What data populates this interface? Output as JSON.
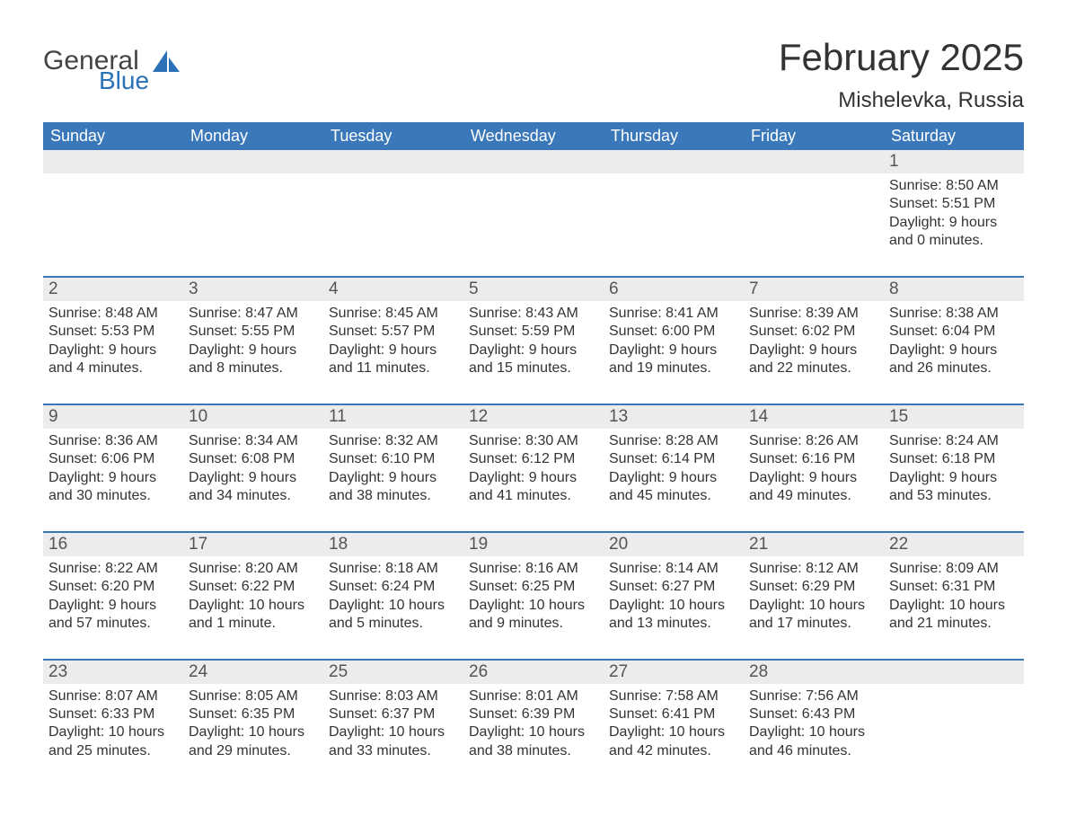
{
  "brand": {
    "general": "General",
    "blue": "Blue",
    "brand_color": "#2a71b8"
  },
  "title": "February 2025",
  "location": "Mishelevka, Russia",
  "colors": {
    "header_bg": "#3a78b9",
    "header_text": "#ffffff",
    "daynum_bg": "#ececec",
    "daynum_text": "#555555",
    "body_text": "#333333",
    "rule": "#3a78b9",
    "page_bg": "#ffffff"
  },
  "fonts": {
    "title_size_pt": 42,
    "location_size_pt": 24,
    "header_size_pt": 18,
    "daynum_size_pt": 19,
    "body_size_pt": 16
  },
  "weekdays": [
    "Sunday",
    "Monday",
    "Tuesday",
    "Wednesday",
    "Thursday",
    "Friday",
    "Saturday"
  ],
  "weeks": [
    [
      null,
      null,
      null,
      null,
      null,
      null,
      {
        "d": "1",
        "sr": "Sunrise: 8:50 AM",
        "ss": "Sunset: 5:51 PM",
        "dl1": "Daylight: 9 hours",
        "dl2": "and 0 minutes."
      }
    ],
    [
      {
        "d": "2",
        "sr": "Sunrise: 8:48 AM",
        "ss": "Sunset: 5:53 PM",
        "dl1": "Daylight: 9 hours",
        "dl2": "and 4 minutes."
      },
      {
        "d": "3",
        "sr": "Sunrise: 8:47 AM",
        "ss": "Sunset: 5:55 PM",
        "dl1": "Daylight: 9 hours",
        "dl2": "and 8 minutes."
      },
      {
        "d": "4",
        "sr": "Sunrise: 8:45 AM",
        "ss": "Sunset: 5:57 PM",
        "dl1": "Daylight: 9 hours",
        "dl2": "and 11 minutes."
      },
      {
        "d": "5",
        "sr": "Sunrise: 8:43 AM",
        "ss": "Sunset: 5:59 PM",
        "dl1": "Daylight: 9 hours",
        "dl2": "and 15 minutes."
      },
      {
        "d": "6",
        "sr": "Sunrise: 8:41 AM",
        "ss": "Sunset: 6:00 PM",
        "dl1": "Daylight: 9 hours",
        "dl2": "and 19 minutes."
      },
      {
        "d": "7",
        "sr": "Sunrise: 8:39 AM",
        "ss": "Sunset: 6:02 PM",
        "dl1": "Daylight: 9 hours",
        "dl2": "and 22 minutes."
      },
      {
        "d": "8",
        "sr": "Sunrise: 8:38 AM",
        "ss": "Sunset: 6:04 PM",
        "dl1": "Daylight: 9 hours",
        "dl2": "and 26 minutes."
      }
    ],
    [
      {
        "d": "9",
        "sr": "Sunrise: 8:36 AM",
        "ss": "Sunset: 6:06 PM",
        "dl1": "Daylight: 9 hours",
        "dl2": "and 30 minutes."
      },
      {
        "d": "10",
        "sr": "Sunrise: 8:34 AM",
        "ss": "Sunset: 6:08 PM",
        "dl1": "Daylight: 9 hours",
        "dl2": "and 34 minutes."
      },
      {
        "d": "11",
        "sr": "Sunrise: 8:32 AM",
        "ss": "Sunset: 6:10 PM",
        "dl1": "Daylight: 9 hours",
        "dl2": "and 38 minutes."
      },
      {
        "d": "12",
        "sr": "Sunrise: 8:30 AM",
        "ss": "Sunset: 6:12 PM",
        "dl1": "Daylight: 9 hours",
        "dl2": "and 41 minutes."
      },
      {
        "d": "13",
        "sr": "Sunrise: 8:28 AM",
        "ss": "Sunset: 6:14 PM",
        "dl1": "Daylight: 9 hours",
        "dl2": "and 45 minutes."
      },
      {
        "d": "14",
        "sr": "Sunrise: 8:26 AM",
        "ss": "Sunset: 6:16 PM",
        "dl1": "Daylight: 9 hours",
        "dl2": "and 49 minutes."
      },
      {
        "d": "15",
        "sr": "Sunrise: 8:24 AM",
        "ss": "Sunset: 6:18 PM",
        "dl1": "Daylight: 9 hours",
        "dl2": "and 53 minutes."
      }
    ],
    [
      {
        "d": "16",
        "sr": "Sunrise: 8:22 AM",
        "ss": "Sunset: 6:20 PM",
        "dl1": "Daylight: 9 hours",
        "dl2": "and 57 minutes."
      },
      {
        "d": "17",
        "sr": "Sunrise: 8:20 AM",
        "ss": "Sunset: 6:22 PM",
        "dl1": "Daylight: 10 hours",
        "dl2": "and 1 minute."
      },
      {
        "d": "18",
        "sr": "Sunrise: 8:18 AM",
        "ss": "Sunset: 6:24 PM",
        "dl1": "Daylight: 10 hours",
        "dl2": "and 5 minutes."
      },
      {
        "d": "19",
        "sr": "Sunrise: 8:16 AM",
        "ss": "Sunset: 6:25 PM",
        "dl1": "Daylight: 10 hours",
        "dl2": "and 9 minutes."
      },
      {
        "d": "20",
        "sr": "Sunrise: 8:14 AM",
        "ss": "Sunset: 6:27 PM",
        "dl1": "Daylight: 10 hours",
        "dl2": "and 13 minutes."
      },
      {
        "d": "21",
        "sr": "Sunrise: 8:12 AM",
        "ss": "Sunset: 6:29 PM",
        "dl1": "Daylight: 10 hours",
        "dl2": "and 17 minutes."
      },
      {
        "d": "22",
        "sr": "Sunrise: 8:09 AM",
        "ss": "Sunset: 6:31 PM",
        "dl1": "Daylight: 10 hours",
        "dl2": "and 21 minutes."
      }
    ],
    [
      {
        "d": "23",
        "sr": "Sunrise: 8:07 AM",
        "ss": "Sunset: 6:33 PM",
        "dl1": "Daylight: 10 hours",
        "dl2": "and 25 minutes."
      },
      {
        "d": "24",
        "sr": "Sunrise: 8:05 AM",
        "ss": "Sunset: 6:35 PM",
        "dl1": "Daylight: 10 hours",
        "dl2": "and 29 minutes."
      },
      {
        "d": "25",
        "sr": "Sunrise: 8:03 AM",
        "ss": "Sunset: 6:37 PM",
        "dl1": "Daylight: 10 hours",
        "dl2": "and 33 minutes."
      },
      {
        "d": "26",
        "sr": "Sunrise: 8:01 AM",
        "ss": "Sunset: 6:39 PM",
        "dl1": "Daylight: 10 hours",
        "dl2": "and 38 minutes."
      },
      {
        "d": "27",
        "sr": "Sunrise: 7:58 AM",
        "ss": "Sunset: 6:41 PM",
        "dl1": "Daylight: 10 hours",
        "dl2": "and 42 minutes."
      },
      {
        "d": "28",
        "sr": "Sunrise: 7:56 AM",
        "ss": "Sunset: 6:43 PM",
        "dl1": "Daylight: 10 hours",
        "dl2": "and 46 minutes."
      },
      null
    ]
  ]
}
